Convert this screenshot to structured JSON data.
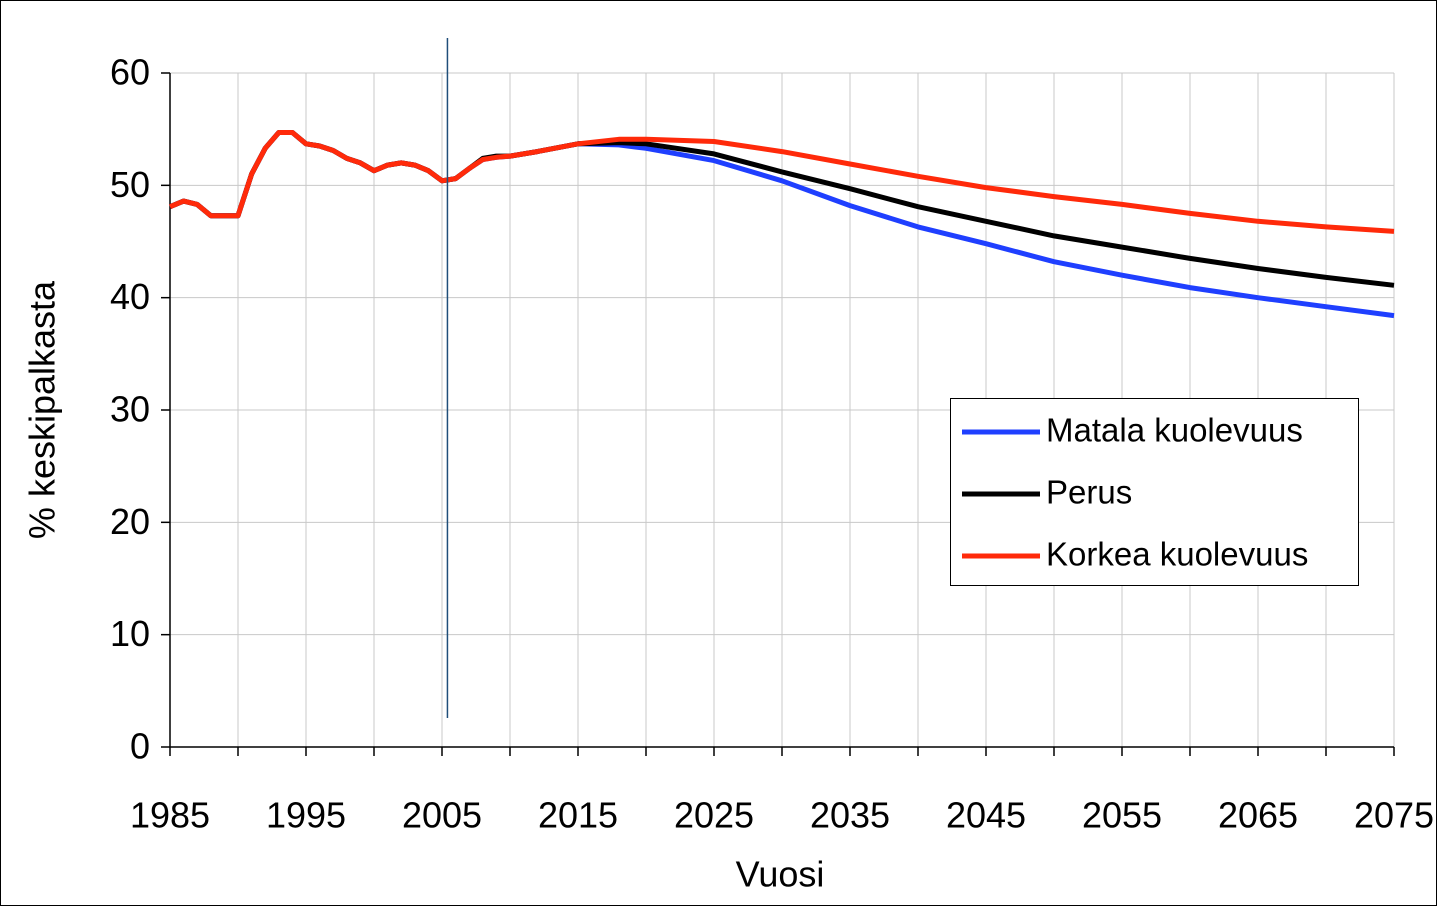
{
  "chart_data": {
    "type": "line",
    "xlabel": "Vuosi",
    "ylabel": "% keskipalkasta",
    "x": [
      1985,
      1986,
      1987,
      1988,
      1989,
      1990,
      1991,
      1992,
      1993,
      1994,
      1995,
      1996,
      1997,
      1998,
      1999,
      2000,
      2001,
      2002,
      2003,
      2004,
      2005,
      2006,
      2007,
      2008,
      2009,
      2010,
      2012,
      2015,
      2018,
      2020,
      2025,
      2030,
      2035,
      2040,
      2045,
      2050,
      2055,
      2060,
      2065,
      2070,
      2075
    ],
    "series": [
      {
        "name": "Matala kuolevuus",
        "color": "#1f3fff",
        "values": [
          48.1,
          48.6,
          48.3,
          47.3,
          47.3,
          47.3,
          51.0,
          53.3,
          54.7,
          54.7,
          53.7,
          53.5,
          53.1,
          52.4,
          52.0,
          51.3,
          51.8,
          52.0,
          51.8,
          51.3,
          50.4,
          50.6,
          51.5,
          52.3,
          52.5,
          52.6,
          53.0,
          53.7,
          53.6,
          53.3,
          52.2,
          50.4,
          48.2,
          46.3,
          44.8,
          43.2,
          42.0,
          40.9,
          40.0,
          39.2,
          38.4
        ]
      },
      {
        "name": "Perus",
        "color": "#000000",
        "values": [
          48.1,
          48.6,
          48.3,
          47.3,
          47.3,
          47.3,
          51.0,
          53.3,
          54.7,
          54.7,
          53.7,
          53.5,
          53.1,
          52.4,
          52.0,
          51.3,
          51.8,
          52.0,
          51.8,
          51.3,
          50.4,
          50.6,
          51.5,
          52.4,
          52.6,
          52.6,
          53.0,
          53.7,
          53.8,
          53.7,
          52.8,
          51.2,
          49.7,
          48.1,
          46.8,
          45.5,
          44.5,
          43.5,
          42.6,
          41.8,
          41.1
        ]
      },
      {
        "name": "Korkea kuolevuus",
        "color": "#ff2a0a",
        "values": [
          48.1,
          48.6,
          48.3,
          47.3,
          47.3,
          47.3,
          51.0,
          53.3,
          54.7,
          54.7,
          53.7,
          53.5,
          53.1,
          52.4,
          52.0,
          51.3,
          51.8,
          52.0,
          51.8,
          51.3,
          50.4,
          50.6,
          51.5,
          52.3,
          52.5,
          52.6,
          53.0,
          53.7,
          54.1,
          54.1,
          53.9,
          53.0,
          51.9,
          50.8,
          49.8,
          49.0,
          48.3,
          47.5,
          46.8,
          46.3,
          45.9
        ]
      }
    ],
    "xlim": [
      1985,
      2075
    ],
    "xticks": [
      1985,
      1995,
      2005,
      2015,
      2025,
      2035,
      2045,
      2055,
      2065,
      2075
    ],
    "xgrid": [
      1985,
      1990,
      1995,
      2000,
      2005,
      2010,
      2015,
      2020,
      2025,
      2030,
      2035,
      2040,
      2045,
      2050,
      2055,
      2060,
      2065,
      2070,
      2075
    ],
    "ylim": [
      0,
      60
    ],
    "yticks": [
      0,
      10,
      20,
      30,
      40,
      50,
      60
    ],
    "grid": true,
    "vline": {
      "x": 2005.4,
      "color": "#1f4e79"
    },
    "legend": "right"
  }
}
